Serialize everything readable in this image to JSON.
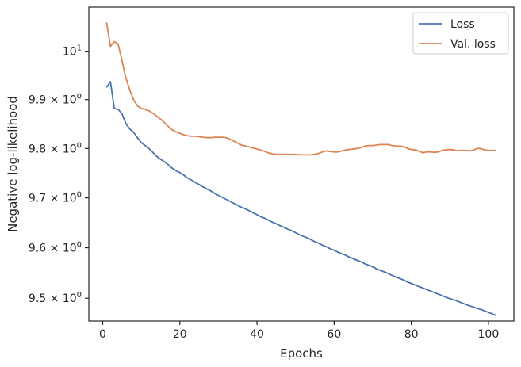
{
  "chart_data": {
    "type": "line",
    "title": "",
    "xlabel": "Epochs",
    "ylabel": "Negative log-likelihood",
    "yscale": "log",
    "xlim": [
      -3.6,
      106.6
    ],
    "ylim": [
      9.455,
      10.092
    ],
    "xticks": [
      {
        "value": 0,
        "label": "0"
      },
      {
        "value": 20,
        "label": "20"
      },
      {
        "value": 40,
        "label": "40"
      },
      {
        "value": 60,
        "label": "60"
      },
      {
        "value": 80,
        "label": "80"
      },
      {
        "value": 100,
        "label": "100"
      }
    ],
    "yticks": [
      {
        "value": 9.5,
        "base": "9.5",
        "mult": "×",
        "exp_base": "10",
        "exp": "0"
      },
      {
        "value": 9.6,
        "base": "9.6",
        "mult": "×",
        "exp_base": "10",
        "exp": "0"
      },
      {
        "value": 9.7,
        "base": "9.7",
        "mult": "×",
        "exp_base": "10",
        "exp": "0"
      },
      {
        "value": 9.8,
        "base": "9.8",
        "mult": "×",
        "exp_base": "10",
        "exp": "0"
      },
      {
        "value": 9.9,
        "base": "9.9",
        "mult": "×",
        "exp_base": "10",
        "exp": "0"
      },
      {
        "value": 10,
        "base": "",
        "mult": "",
        "exp_base": "10",
        "exp": "1"
      }
    ],
    "grid": false,
    "legend_position": "top-right",
    "x": [
      1,
      2,
      3,
      4,
      5,
      6,
      7,
      8,
      9,
      10,
      11,
      12,
      13,
      14,
      15,
      16,
      17,
      18,
      19,
      20,
      21,
      22,
      23,
      24,
      25,
      26,
      27,
      28,
      29,
      30,
      31,
      32,
      33,
      34,
      35,
      36,
      37,
      38,
      39,
      40,
      41,
      42,
      43,
      44,
      45,
      46,
      47,
      48,
      49,
      50,
      51,
      52,
      53,
      54,
      55,
      56,
      57,
      58,
      59,
      60,
      61,
      62,
      63,
      64,
      65,
      66,
      67,
      68,
      69,
      70,
      71,
      72,
      73,
      74,
      75,
      76,
      77,
      78,
      79,
      80,
      81,
      82,
      83,
      84,
      85,
      86,
      87,
      88,
      89,
      90,
      91,
      92,
      93,
      94,
      95,
      96,
      97,
      98,
      99,
      100,
      101,
      102
    ],
    "series": [
      {
        "name": "Loss",
        "color": "#4c72b0",
        "values": [
          9.925,
          9.937,
          9.882,
          9.88,
          9.871,
          9.851,
          9.84,
          9.833,
          9.822,
          9.812,
          9.806,
          9.8,
          9.792,
          9.784,
          9.778,
          9.773,
          9.767,
          9.76,
          9.755,
          9.751,
          9.746,
          9.74,
          9.736,
          9.731,
          9.727,
          9.722,
          9.718,
          9.714,
          9.709,
          9.705,
          9.701,
          9.697,
          9.693,
          9.689,
          9.685,
          9.681,
          9.678,
          9.674,
          9.67,
          9.666,
          9.662,
          9.659,
          9.655,
          9.651,
          9.648,
          9.644,
          9.641,
          9.637,
          9.634,
          9.63,
          9.626,
          9.623,
          9.62,
          9.616,
          9.612,
          9.609,
          9.605,
          9.602,
          9.598,
          9.595,
          9.591,
          9.588,
          9.585,
          9.581,
          9.578,
          9.575,
          9.572,
          9.568,
          9.565,
          9.562,
          9.558,
          9.555,
          9.552,
          9.549,
          9.545,
          9.542,
          9.539,
          9.536,
          9.532,
          9.529,
          9.526,
          9.523,
          9.52,
          9.517,
          9.514,
          9.511,
          9.508,
          9.505,
          9.502,
          9.499,
          9.497,
          9.494,
          9.491,
          9.488,
          9.485,
          9.483,
          9.48,
          9.478,
          9.475,
          9.472,
          9.469,
          9.466
        ]
      },
      {
        "name": "Val. loss",
        "color": "#dd8452",
        "values": [
          10.06,
          10.01,
          10.02,
          10.015,
          9.98,
          9.945,
          9.92,
          9.9,
          9.887,
          9.882,
          9.88,
          9.877,
          9.872,
          9.866,
          9.86,
          9.853,
          9.845,
          9.838,
          9.834,
          9.831,
          9.828,
          9.826,
          9.825,
          9.825,
          9.824,
          9.823,
          9.822,
          9.822,
          9.823,
          9.823,
          9.823,
          9.822,
          9.819,
          9.815,
          9.811,
          9.807,
          9.805,
          9.803,
          9.801,
          9.799,
          9.797,
          9.794,
          9.791,
          9.789,
          9.788,
          9.788,
          9.788,
          9.788,
          9.788,
          9.788,
          9.787,
          9.787,
          9.787,
          9.787,
          9.788,
          9.79,
          9.793,
          9.795,
          9.794,
          9.793,
          9.793,
          9.795,
          9.797,
          9.798,
          9.799,
          9.8,
          9.802,
          9.805,
          9.806,
          9.806,
          9.807,
          9.808,
          9.808,
          9.808,
          9.806,
          9.805,
          9.805,
          9.804,
          9.8,
          9.798,
          9.797,
          9.795,
          9.791,
          9.793,
          9.793,
          9.792,
          9.793,
          9.796,
          9.797,
          9.798,
          9.797,
          9.795,
          9.796,
          9.796,
          9.795,
          9.796,
          9.8,
          9.8,
          9.797,
          9.796,
          9.796,
          9.796
        ]
      }
    ]
  }
}
